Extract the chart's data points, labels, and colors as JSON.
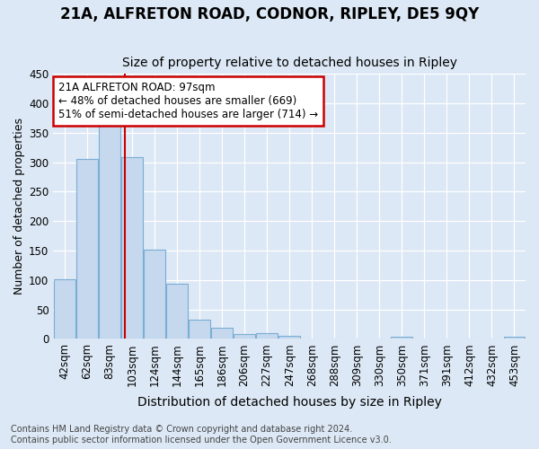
{
  "title1": "21A, ALFRETON ROAD, CODNOR, RIPLEY, DE5 9QY",
  "title2": "Size of property relative to detached houses in Ripley",
  "xlabel": "Distribution of detached houses by size in Ripley",
  "ylabel": "Number of detached properties",
  "footer1": "Contains HM Land Registry data © Crown copyright and database right 2024.",
  "footer2": "Contains public sector information licensed under the Open Government Licence v3.0.",
  "property_label": "21A ALFRETON ROAD: 97sqm",
  "pct_smaller": 48,
  "count_smaller": 669,
  "pct_larger_semi": 51,
  "count_larger_semi": 714,
  "bar_labels": [
    "42sqm",
    "62sqm",
    "83sqm",
    "103sqm",
    "124sqm",
    "144sqm",
    "165sqm",
    "186sqm",
    "206sqm",
    "227sqm",
    "247sqm",
    "268sqm",
    "288sqm",
    "309sqm",
    "330sqm",
    "350sqm",
    "371sqm",
    "391sqm",
    "412sqm",
    "432sqm",
    "453sqm"
  ],
  "bar_values": [
    101,
    305,
    369,
    309,
    152,
    93,
    33,
    19,
    8,
    10,
    5,
    0,
    0,
    0,
    0,
    3,
    0,
    0,
    0,
    0,
    3
  ],
  "bar_color": "#c5d8ee",
  "bar_edge_color": "#7aaed4",
  "vline_color": "#cc0000",
  "vline_pos": 2.7,
  "ylim": [
    0,
    450
  ],
  "yticks": [
    0,
    50,
    100,
    150,
    200,
    250,
    300,
    350,
    400,
    450
  ],
  "bg_color": "#dce8f5",
  "annotation_box_edgecolor": "#cc0000",
  "title1_fontsize": 12,
  "title2_fontsize": 10,
  "xlabel_fontsize": 10,
  "ylabel_fontsize": 9,
  "tick_fontsize": 8.5,
  "ann_fontsize": 8.5,
  "footer_fontsize": 7
}
